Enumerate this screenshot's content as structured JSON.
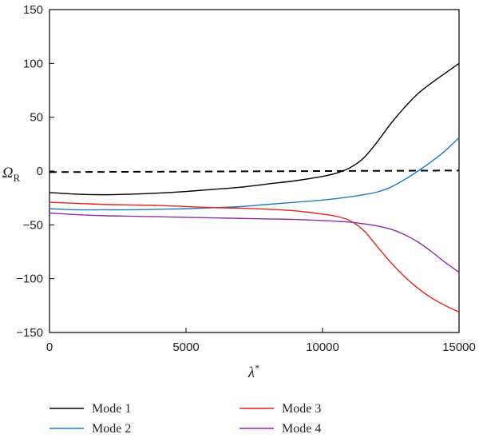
{
  "chart_data": {
    "type": "line",
    "title": "",
    "xlabel": "λ*",
    "ylabel": "Ω_R",
    "xlim": [
      0,
      15000
    ],
    "ylim": [
      -150,
      150
    ],
    "xticks": [
      0,
      5000,
      10000,
      15000
    ],
    "yticks": [
      -150,
      -100,
      -50,
      0,
      50,
      100,
      150
    ],
    "grid": false,
    "legend_position": "bottom",
    "series": [
      {
        "name": "Mode 1",
        "color": "#000000",
        "x": [
          0,
          1000,
          2000,
          3000,
          4000,
          5000,
          6000,
          7000,
          8000,
          9000,
          10000,
          10500,
          11000,
          11500,
          12000,
          12500,
          13000,
          13500,
          14000,
          14500,
          15000
        ],
        "y": [
          -20,
          -21.5,
          -22,
          -21.5,
          -20.5,
          -19,
          -17,
          -15,
          -12,
          -9,
          -5,
          -2,
          3,
          12,
          27,
          44,
          59,
          72,
          82,
          91,
          100
        ]
      },
      {
        "name": "Mode 2",
        "color": "#1f78c1",
        "x": [
          0,
          1000,
          2000,
          3000,
          4000,
          5000,
          6000,
          7000,
          8000,
          9000,
          10000,
          11000,
          11500,
          12000,
          12500,
          13000,
          13500,
          14000,
          14500,
          15000
        ],
        "y": [
          -35,
          -36,
          -36,
          -36,
          -35.5,
          -35,
          -34,
          -33,
          -31,
          -29,
          -27,
          -24,
          -22,
          -19.5,
          -15,
          -8,
          0,
          9,
          19,
          31
        ]
      },
      {
        "name": "Mode 3",
        "color": "#e8221c",
        "x": [
          0,
          1000,
          2000,
          3000,
          4000,
          5000,
          6000,
          7000,
          8000,
          9000,
          10000,
          10500,
          11000,
          11500,
          12000,
          12500,
          13000,
          13500,
          14000,
          14500,
          15000
        ],
        "y": [
          -29,
          -30,
          -31,
          -31.5,
          -32,
          -33,
          -34,
          -34.5,
          -35.5,
          -37,
          -40,
          -42,
          -46,
          -55,
          -70,
          -85,
          -98,
          -109,
          -118,
          -125,
          -131
        ]
      },
      {
        "name": "Mode 4",
        "color": "#8a2ea0",
        "x": [
          0,
          1000,
          2000,
          3000,
          4000,
          5000,
          6000,
          7000,
          8000,
          9000,
          10000,
          11000,
          11500,
          12000,
          12500,
          13000,
          13500,
          14000,
          14500,
          15000
        ],
        "y": [
          -39,
          -40.5,
          -41.5,
          -42,
          -42.5,
          -43,
          -43.5,
          -44,
          -44.5,
          -45,
          -46,
          -47.5,
          -49,
          -51,
          -54,
          -59,
          -66,
          -75,
          -85,
          -94
        ]
      },
      {
        "name": "",
        "color": "#000000",
        "dashed": true,
        "x": [
          0,
          15000
        ],
        "y": [
          -1,
          0.5
        ]
      }
    ]
  }
}
